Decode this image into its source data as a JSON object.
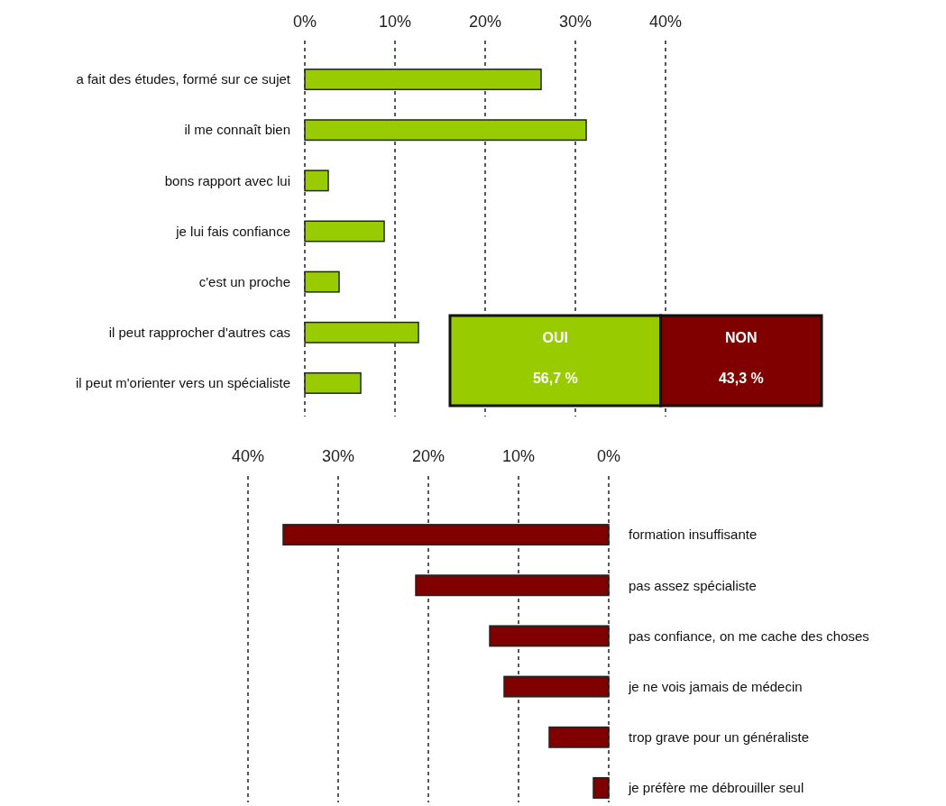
{
  "chart_data": [
    {
      "type": "bar",
      "orientation": "horizontal",
      "categories": [
        "a fait des études, formé sur ce sujet",
        "il me connaît bien",
        "bons rapport avec lui",
        "je lui fais confiance",
        "c'est un proche",
        "il peut  rapprocher d'autres cas",
        "il peut m'orienter vers un spécialiste"
      ],
      "values": [
        26.2,
        31.2,
        2.6,
        8.8,
        3.8,
        12.6,
        6.2
      ],
      "color": "#99cc00",
      "xlim": [
        0,
        40
      ],
      "xticks": [
        {
          "value": 0,
          "label": "0%"
        },
        {
          "value": 10,
          "label": "10%"
        },
        {
          "value": 20,
          "label": "20%"
        },
        {
          "value": 30,
          "label": "30%"
        },
        {
          "value": 40,
          "label": "40%"
        }
      ],
      "grid": "x"
    },
    {
      "type": "bar",
      "orientation": "horizontal",
      "stacked": true,
      "categories": [
        null
      ],
      "series": [
        {
          "name": "OUI",
          "color": "#99cc00",
          "values": [
            56.7
          ],
          "value_labels": [
            "56,7 %"
          ]
        },
        {
          "name": "NON",
          "color": "#800000",
          "values": [
            43.3
          ],
          "value_labels": [
            "43,3 %"
          ]
        }
      ]
    },
    {
      "type": "bar",
      "orientation": "horizontal",
      "categories": [
        "formation insuffisante",
        "pas assez spécialiste",
        "pas confiance, on me cache des choses",
        "je ne vois jamais de médecin",
        "trop grave pour un généraliste",
        "je préfère me débrouiller seul"
      ],
      "values": [
        36.1,
        21.4,
        13.2,
        11.6,
        6.6,
        1.7
      ],
      "color": "#800000",
      "xlim": [
        40,
        0
      ],
      "xticks": [
        {
          "value": 40,
          "label": "40%"
        },
        {
          "value": 30,
          "label": "30%"
        },
        {
          "value": 20,
          "label": "20%"
        },
        {
          "value": 10,
          "label": "10%"
        },
        {
          "value": 0,
          "label": "0%"
        }
      ],
      "grid": "x"
    }
  ]
}
